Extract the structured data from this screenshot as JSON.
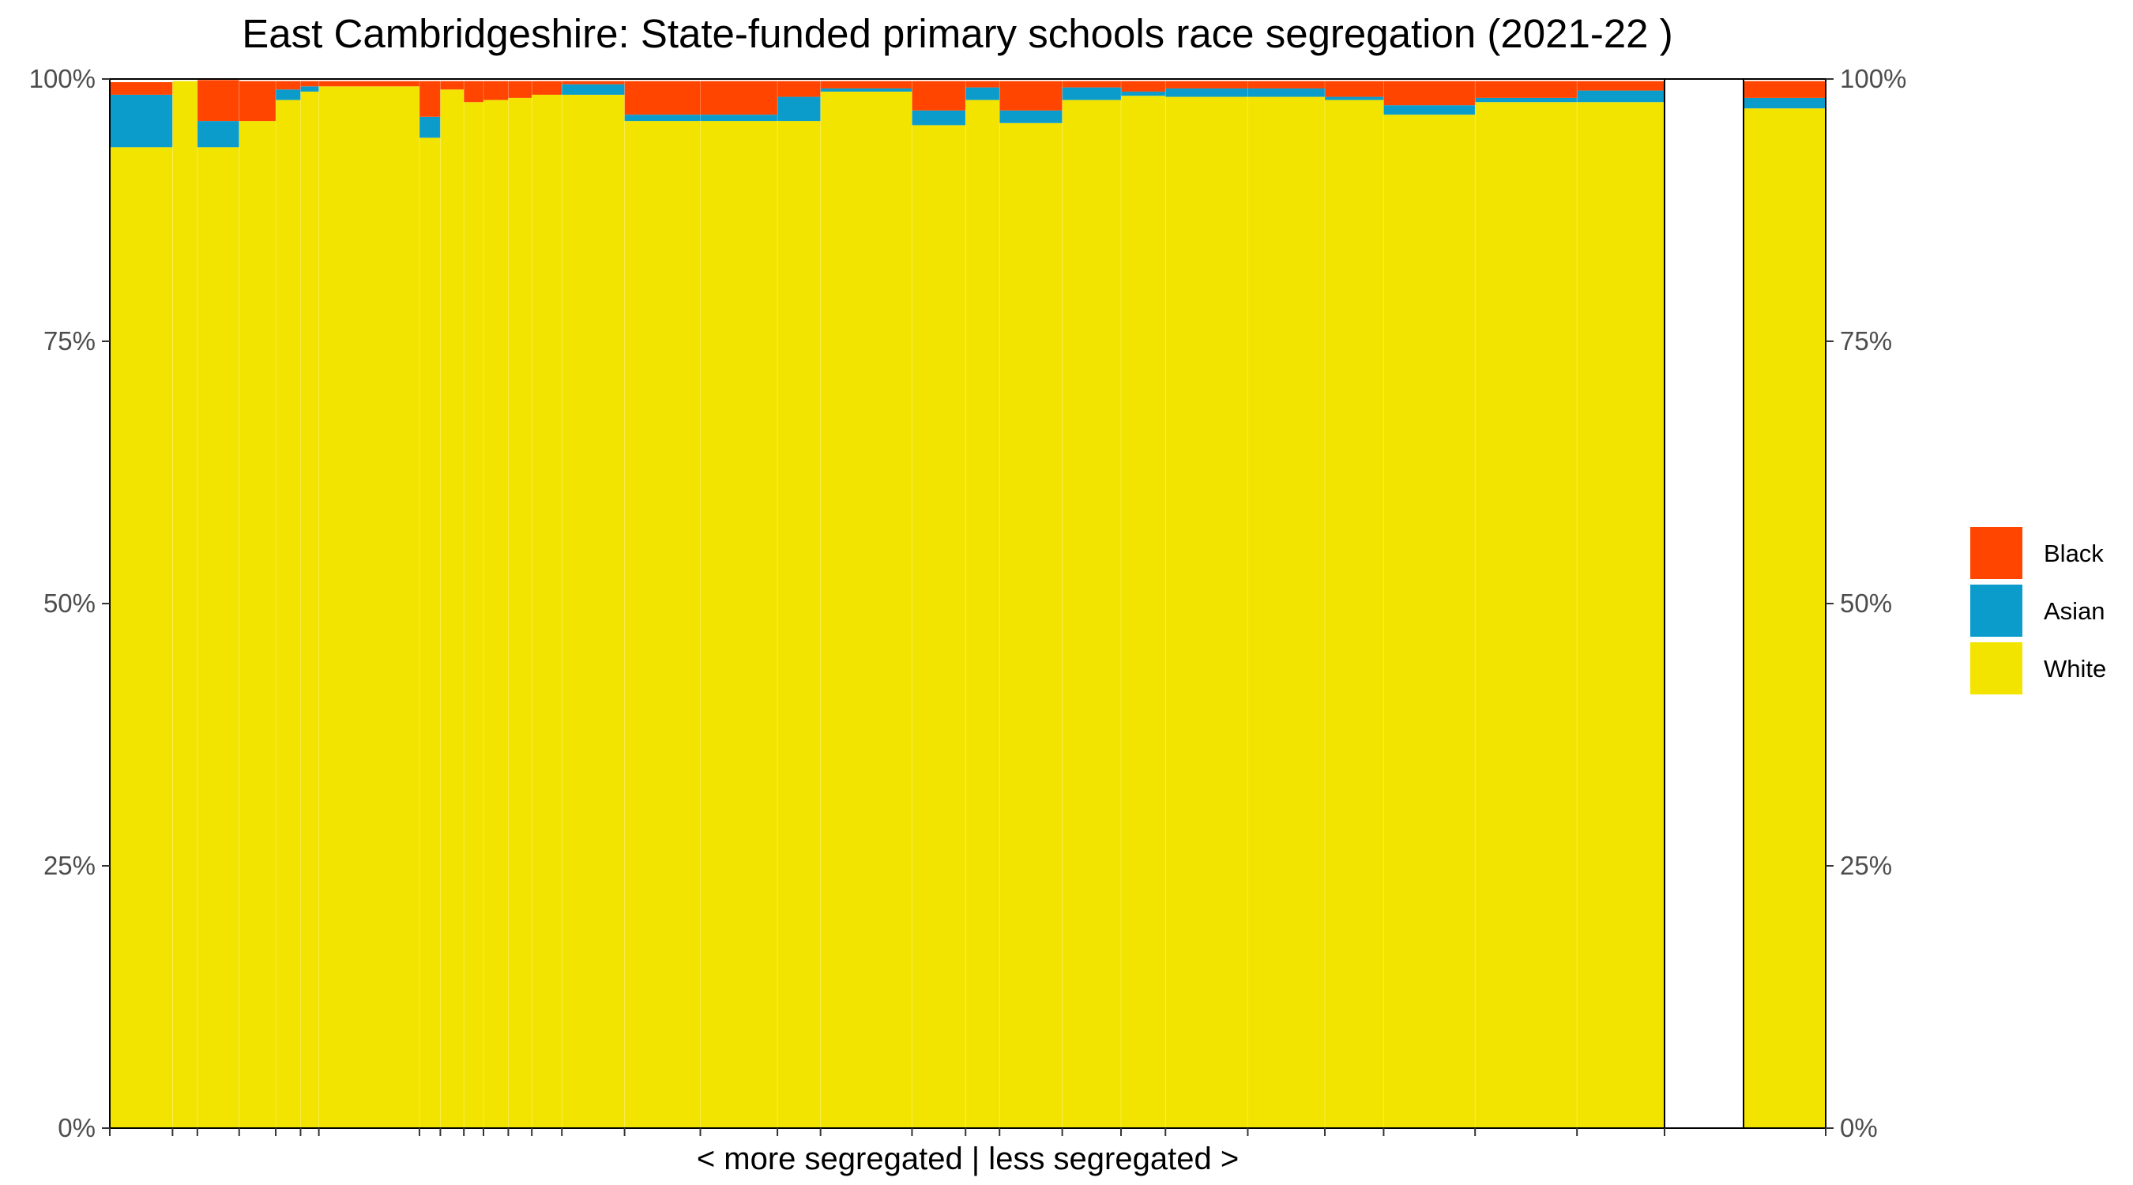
{
  "chart_data": {
    "type": "bar",
    "subtype": "stacked-variable-width",
    "title": "East Cambridgeshire: State-funded primary schools race segregation (2021-22 )",
    "xlabel": "< more segregated | less segregated >",
    "ylabel": "",
    "ylim": [
      0,
      1
    ],
    "y_ticks": [
      "0%",
      "25%",
      "50%",
      "75%",
      "100%"
    ],
    "y_tick_values": [
      0,
      0.25,
      0.5,
      0.75,
      1.0
    ],
    "secondary_y_axis": true,
    "grid": false,
    "legend_position": "right",
    "colors": {
      "Black": "#ff4500",
      "Asian": "#0b9ccc",
      "White": "#f3e400",
      "panel_border": "#000000",
      "tick_label": "#4d4d4d"
    },
    "series": [
      {
        "name": "White",
        "color": "#f3e400"
      },
      {
        "name": "Asian",
        "color": "#0b9ccc"
      },
      {
        "name": "Black",
        "color": "#ff4500"
      }
    ],
    "legend_order": [
      "Black",
      "Asian",
      "White"
    ],
    "x_total_units": 1190,
    "bars": [
      {
        "group": "schools",
        "x_start": 0,
        "x_end": 48,
        "white": 0.935,
        "asian": 0.05,
        "black": 0.012
      },
      {
        "group": "schools",
        "x_start": 48,
        "x_end": 67,
        "white": 0.998,
        "asian": 0.0,
        "black": 0.0
      },
      {
        "group": "schools",
        "x_start": 67,
        "x_end": 99,
        "white": 0.935,
        "asian": 0.025,
        "black": 0.039
      },
      {
        "group": "schools",
        "x_start": 99,
        "x_end": 127,
        "white": 0.96,
        "asian": 0.0,
        "black": 0.038
      },
      {
        "group": "schools",
        "x_start": 127,
        "x_end": 146,
        "white": 0.98,
        "asian": 0.01,
        "black": 0.008
      },
      {
        "group": "schools",
        "x_start": 146,
        "x_end": 160,
        "white": 0.988,
        "asian": 0.005,
        "black": 0.005
      },
      {
        "group": "schools",
        "x_start": 160,
        "x_end": 237,
        "white": 0.993,
        "asian": 0.0,
        "black": 0.005
      },
      {
        "group": "schools",
        "x_start": 237,
        "x_end": 253,
        "white": 0.944,
        "asian": 0.02,
        "black": 0.034
      },
      {
        "group": "schools",
        "x_start": 253,
        "x_end": 271,
        "white": 0.99,
        "asian": 0.0,
        "black": 0.008
      },
      {
        "group": "schools",
        "x_start": 271,
        "x_end": 286,
        "white": 0.978,
        "asian": 0.0,
        "black": 0.02
      },
      {
        "group": "schools",
        "x_start": 286,
        "x_end": 305,
        "white": 0.98,
        "asian": 0.0,
        "black": 0.018
      },
      {
        "group": "schools",
        "x_start": 305,
        "x_end": 323,
        "white": 0.982,
        "asian": 0.0,
        "black": 0.016
      },
      {
        "group": "schools",
        "x_start": 323,
        "x_end": 346,
        "white": 0.985,
        "asian": 0.0,
        "black": 0.013
      },
      {
        "group": "schools",
        "x_start": 346,
        "x_end": 394,
        "white": 0.985,
        "asian": 0.01,
        "black": 0.003
      },
      {
        "group": "schools",
        "x_start": 394,
        "x_end": 452,
        "white": 0.96,
        "asian": 0.006,
        "black": 0.032
      },
      {
        "group": "schools",
        "x_start": 452,
        "x_end": 511,
        "white": 0.96,
        "asian": 0.006,
        "black": 0.032
      },
      {
        "group": "schools",
        "x_start": 511,
        "x_end": 544,
        "white": 0.96,
        "asian": 0.023,
        "black": 0.015
      },
      {
        "group": "schools",
        "x_start": 544,
        "x_end": 614,
        "white": 0.988,
        "asian": 0.003,
        "black": 0.007
      },
      {
        "group": "schools",
        "x_start": 614,
        "x_end": 655,
        "white": 0.956,
        "asian": 0.014,
        "black": 0.028
      },
      {
        "group": "schools",
        "x_start": 655,
        "x_end": 681,
        "white": 0.98,
        "asian": 0.012,
        "black": 0.006
      },
      {
        "group": "schools",
        "x_start": 681,
        "x_end": 729,
        "white": 0.958,
        "asian": 0.012,
        "black": 0.028
      },
      {
        "group": "schools",
        "x_start": 729,
        "x_end": 774,
        "white": 0.98,
        "asian": 0.012,
        "black": 0.006
      },
      {
        "group": "schools",
        "x_start": 774,
        "x_end": 808,
        "white": 0.984,
        "asian": 0.004,
        "black": 0.01
      },
      {
        "group": "schools",
        "x_start": 808,
        "x_end": 871,
        "white": 0.983,
        "asian": 0.008,
        "black": 0.007
      },
      {
        "group": "schools",
        "x_start": 871,
        "x_end": 930,
        "white": 0.983,
        "asian": 0.008,
        "black": 0.007
      },
      {
        "group": "schools",
        "x_start": 930,
        "x_end": 975,
        "white": 0.98,
        "asian": 0.003,
        "black": 0.015
      },
      {
        "group": "schools",
        "x_start": 975,
        "x_end": 1045,
        "white": 0.966,
        "asian": 0.009,
        "black": 0.023
      },
      {
        "group": "schools",
        "x_start": 1045,
        "x_end": 1123,
        "white": 0.978,
        "asian": 0.004,
        "black": 0.016
      },
      {
        "group": "schools",
        "x_start": 1123,
        "x_end": 1190,
        "white": 0.978,
        "asian": 0.011,
        "black": 0.009
      }
    ],
    "gap_units": 58,
    "summary_bar": {
      "group": "total",
      "white": 0.972,
      "asian": 0.01,
      "black": 0.016,
      "width_units": 60
    }
  }
}
